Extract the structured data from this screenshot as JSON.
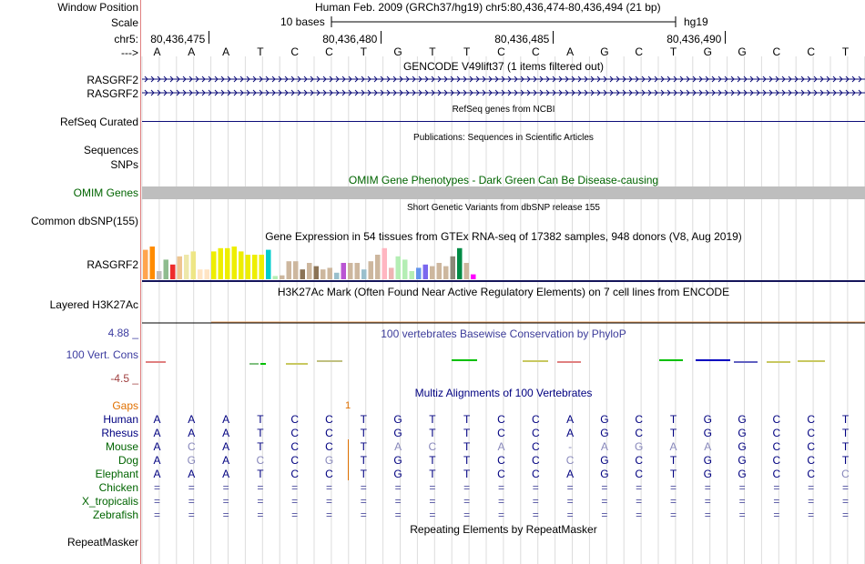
{
  "header": {
    "window_position_label": "Window Position",
    "window_position_value": "Human Feb. 2009 (GRCh37/hg19)   chr5:80,436,474-80,436,494 (21 bp)",
    "scale_label": "Scale",
    "scale_text": "10 bases",
    "assembly": "hg19",
    "chrom_label": "chr5:",
    "ticks": [
      "80,436,475",
      "80,436,480",
      "80,436,485",
      "80,436,490"
    ],
    "strand_label": "--->",
    "bases": [
      "A",
      "A",
      "A",
      "T",
      "C",
      "C",
      "T",
      "G",
      "T",
      "T",
      "C",
      "C",
      "A",
      "G",
      "C",
      "T",
      "G",
      "G",
      "C",
      "C",
      "T"
    ]
  },
  "tracks": {
    "gencode_title": "GENCODE V49lift37 (1 items filtered out)",
    "gencode_items": [
      "RASGRF2",
      "RASGRF2"
    ],
    "refseq_title": "RefSeq genes from NCBI",
    "refseq_label": "RefSeq Curated",
    "publications_title": "Publications: Sequences in Scientific Articles",
    "sequences_label": "Sequences",
    "snps_label": "SNPs",
    "omim_title": "OMIM Gene Phenotypes - Dark Green Can Be Disease-causing",
    "omim_label": "OMIM Genes",
    "dbsnp_title": "Short Genetic Variants from dbSNP release 155",
    "dbsnp_label": "Common dbSNP(155)",
    "gtex_title": "Gene Expression in 54 tissues from GTEx RNA-seq of 17382 samples, 948 donors (V8, Aug 2019)",
    "gtex_label": "RASGRF2",
    "h3k27_title": "H3K27Ac Mark (Often Found Near Active Regulatory Elements) on 7 cell lines from ENCODE",
    "h3k27_label": "Layered H3K27Ac",
    "phylop_title": "100 vertebrates Basewise Conservation by PhyloP",
    "phylop_label": "100 Vert. Cons",
    "phylop_max": "4.88 _",
    "phylop_min": "-4.5 _",
    "gaps_label": "Gaps",
    "gaps_marker": "1",
    "multiz_title": "Multiz Alignments of 100 Vertebrates",
    "repeat_title": "Repeating Elements by RepeatMasker",
    "repeat_label": "RepeatMasker"
  },
  "gtex_values": [
    0.9,
    1.0,
    0.25,
    0.6,
    0.45,
    0.7,
    0.75,
    0.85,
    0.3,
    0.3,
    0.85,
    0.95,
    0.95,
    1.0,
    0.85,
    0.75,
    0.75,
    0.75,
    0.9,
    0.1,
    0.12,
    0.55,
    0.55,
    0.3,
    0.5,
    0.4,
    0.3,
    0.35,
    0.2,
    0.5,
    0.5,
    0.5,
    0.3,
    0.55,
    0.75,
    0.95,
    0.35,
    0.7,
    0.6,
    0.25,
    0.35,
    0.45,
    0.4,
    0.5,
    0.4,
    0.7,
    0.95,
    0.5,
    0.15
  ],
  "gtex_colors": [
    "#FFA54F",
    "#FF8C00",
    "#BEBEBE",
    "#8FBC8F",
    "#EE2C2C",
    "#EEC591",
    "#EEE8AA",
    "#EEE685",
    "#FFE4C4",
    "#FFE4C4",
    "#EEEE00",
    "#EEEE00",
    "#EEEE00",
    "#EEEE00",
    "#EEEE00",
    "#EEEE00",
    "#EEEE00",
    "#EEEE00",
    "#00CDCD",
    "#B4EEB4",
    "#CDB79E",
    "#CDB79E",
    "#CDB79E",
    "#8B7355",
    "#CDB79E",
    "#8B7355",
    "#CDB79E",
    "#CDB79E",
    "#9AC0CD",
    "#BA55D3",
    "#CDB79E",
    "#CDB79E",
    "#9AC0CD",
    "#CDB79E",
    "#CDB79E",
    "#FFB6C1",
    "#EEB4B4",
    "#B4EEB4",
    "#B4EEB4",
    "#B4EEB4",
    "#6495ED",
    "#7A67EE",
    "#CDB79E",
    "#CDB79E",
    "#CDB79E",
    "#8B8878",
    "#008B45",
    "#CDB79E",
    "#FF00FF"
  ],
  "species": [
    {
      "name": "Human",
      "color": "#000080",
      "seq": [
        "A",
        "A",
        "A",
        "T",
        "C",
        "C",
        "T",
        "G",
        "T",
        "T",
        "C",
        "C",
        "A",
        "G",
        "C",
        "T",
        "G",
        "G",
        "C",
        "C",
        "T"
      ]
    },
    {
      "name": "Rhesus",
      "color": "#000080",
      "seq": [
        "A",
        "A",
        "A",
        "T",
        "C",
        "C",
        "T",
        "G",
        "T",
        "T",
        "C",
        "C",
        "A",
        "G",
        "C",
        "T",
        "G",
        "G",
        "C",
        "C",
        "T"
      ]
    },
    {
      "name": "Mouse",
      "color": "#006400",
      "seq": [
        "A",
        "C",
        "A",
        "T",
        "C",
        "C",
        "T",
        "A",
        "C",
        "T",
        "A",
        "C",
        "-",
        "A",
        "G",
        "A",
        "A",
        "G",
        "C",
        "C",
        "T"
      ]
    },
    {
      "name": "Dog",
      "color": "#006400",
      "seq": [
        "A",
        "G",
        "A",
        "C",
        "C",
        "G",
        "T",
        "G",
        "T",
        "T",
        "C",
        "C",
        "C",
        "G",
        "C",
        "T",
        "G",
        "G",
        "C",
        "C",
        "T"
      ]
    },
    {
      "name": "Elephant",
      "color": "#006400",
      "seq": [
        "A",
        "A",
        "A",
        "T",
        "C",
        "C",
        "T",
        "G",
        "T",
        "T",
        "C",
        "C",
        "A",
        "G",
        "C",
        "T",
        "G",
        "G",
        "C",
        "C",
        "C"
      ]
    },
    {
      "name": "Chicken",
      "color": "#006400",
      "seq": [
        "=",
        "=",
        "=",
        "=",
        "=",
        "=",
        "=",
        "=",
        "=",
        "=",
        "=",
        "=",
        "=",
        "=",
        "=",
        "=",
        "=",
        "=",
        "=",
        "=",
        "="
      ]
    },
    {
      "name": "X_tropicalis",
      "color": "#006400",
      "seq": [
        "=",
        "=",
        "=",
        "=",
        "=",
        "=",
        "=",
        "=",
        "=",
        "=",
        "=",
        "=",
        "=",
        "=",
        "=",
        "=",
        "=",
        "=",
        "=",
        "=",
        "="
      ]
    },
    {
      "name": "Zebrafish",
      "color": "#006400",
      "seq": [
        "=",
        "=",
        "=",
        "=",
        "=",
        "=",
        "=",
        "=",
        "=",
        "=",
        "=",
        "=",
        "=",
        "=",
        "=",
        "=",
        "=",
        "=",
        "=",
        "=",
        "="
      ]
    }
  ],
  "mismatch_map": [
    [
      0,
      0,
      0,
      0,
      0,
      0,
      0,
      0,
      0,
      0,
      0,
      0,
      0,
      0,
      0,
      0,
      0,
      0,
      0,
      0,
      0
    ],
    [
      0,
      0,
      0,
      0,
      0,
      0,
      0,
      0,
      0,
      0,
      0,
      0,
      0,
      0,
      0,
      0,
      0,
      0,
      0,
      0,
      0
    ],
    [
      0,
      1,
      0,
      0,
      0,
      0,
      0,
      1,
      1,
      0,
      1,
      0,
      1,
      1,
      1,
      1,
      1,
      0,
      0,
      0,
      0
    ],
    [
      0,
      1,
      0,
      1,
      0,
      1,
      0,
      0,
      0,
      0,
      0,
      0,
      1,
      0,
      0,
      0,
      0,
      0,
      0,
      0,
      0
    ],
    [
      0,
      0,
      0,
      0,
      0,
      0,
      0,
      0,
      0,
      0,
      0,
      0,
      0,
      0,
      0,
      0,
      0,
      0,
      0,
      0,
      1
    ]
  ],
  "colors": {
    "label_default": "#000000",
    "gencode": "#1C6D9F",
    "refseq": "#0C0C78",
    "omim": "#006400",
    "omim_bar": "#BEBEBE",
    "phylop_title": "#3C3C9A",
    "phylop_max": "#3C3CA0",
    "phylop_min": "#A04040",
    "gaps": "#E07000",
    "gtex_axis": "#14145A",
    "mismatch": "#8888BB"
  }
}
